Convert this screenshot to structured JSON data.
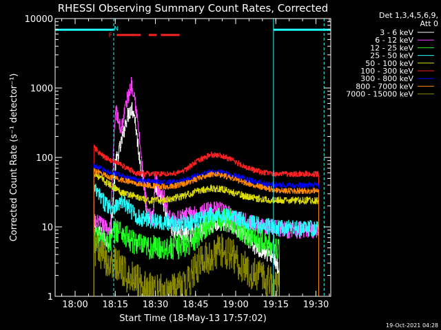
{
  "chart_data": {
    "type": "line",
    "title": "RHESSI Observing Summary Count Rates, Corrected",
    "xlabel": "Start Time (18-May-13 17:57:02)",
    "ylabel": "Corrected Count Rate (s⁻¹ detector⁻¹)",
    "x_unit": "minutes after 17:57:02 (18-May-13)",
    "xlim": [
      -4.5,
      98.5
    ],
    "ylim": [
      1,
      10000
    ],
    "yscale": "log",
    "x_ticks": [
      {
        "value": 2.97,
        "label": "18:00"
      },
      {
        "value": 17.97,
        "label": "18:15"
      },
      {
        "value": 32.97,
        "label": "18:30"
      },
      {
        "value": 47.97,
        "label": "18:45"
      },
      {
        "value": 62.97,
        "label": "19:00"
      },
      {
        "value": 77.97,
        "label": "19:15"
      },
      {
        "value": 92.97,
        "label": "19:30"
      }
    ],
    "y_ticks": [
      {
        "value": 1,
        "label": "1"
      },
      {
        "value": 10,
        "label": "10"
      },
      {
        "value": 100,
        "label": "100"
      },
      {
        "value": 1000,
        "label": "1000"
      },
      {
        "value": 10000,
        "label": "10000"
      }
    ],
    "legend_header": [
      "Det 1,3,4,5,6,9,",
      "Att 0"
    ],
    "legend_position": "right",
    "series": [
      {
        "name": "3 - 6 keV",
        "color": "#ffffff",
        "x": [
          10,
          12,
          14,
          16,
          18,
          20,
          22,
          24,
          25,
          27,
          28,
          29,
          30,
          31,
          32,
          33,
          34,
          35,
          36,
          38,
          40,
          43,
          46,
          50,
          54,
          58,
          61,
          64,
          67,
          70,
          73,
          76,
          77,
          78,
          79.3
        ],
        "y": [
          10,
          8,
          7,
          6,
          80,
          150,
          350,
          530,
          430,
          100,
          60,
          35,
          12,
          15,
          13,
          40,
          25,
          28,
          20,
          11,
          9,
          8,
          8,
          9,
          11,
          11,
          11,
          9,
          7,
          5,
          4.5,
          4,
          3.8,
          3,
          2
        ]
      },
      {
        "name": "6 - 12 keV",
        "color": "#ff44ff",
        "x": [
          10,
          12,
          14,
          16,
          18,
          20,
          22,
          24,
          25,
          27,
          28,
          29,
          30,
          31,
          32,
          33,
          34,
          35,
          36,
          38,
          40,
          43,
          46,
          50,
          54,
          58,
          61,
          64,
          67,
          70,
          73,
          76,
          78,
          82,
          86,
          90,
          94
        ],
        "y": [
          12,
          11,
          10,
          9,
          500,
          250,
          600,
          1150,
          900,
          180,
          70,
          30,
          15,
          14,
          12,
          60,
          30,
          35,
          28,
          14,
          12,
          14,
          15,
          16,
          18,
          17,
          15,
          13,
          12,
          11,
          10,
          10,
          9.5,
          9,
          9,
          9,
          9
        ]
      },
      {
        "name": "12 - 25 keV",
        "color": "#22ff22",
        "x": [
          10,
          12,
          14,
          16,
          18,
          20,
          22,
          24,
          26,
          28,
          30,
          32,
          34,
          36,
          40,
          44,
          48,
          50,
          54,
          58,
          62,
          64,
          67,
          70,
          73,
          76,
          79.3
        ],
        "y": [
          7,
          6.5,
          6,
          6,
          9,
          9,
          7,
          6,
          6,
          5,
          5,
          5,
          5,
          5,
          5,
          5.5,
          7,
          9,
          12,
          13,
          12,
          10,
          8,
          7,
          6,
          5.5,
          5
        ]
      },
      {
        "name": "25 - 50 keV",
        "color": "#22ffff",
        "x": [
          10,
          12,
          14,
          16,
          18,
          20,
          22,
          24,
          26,
          28,
          30,
          32,
          34,
          36,
          40,
          44,
          48,
          50,
          54,
          58,
          62,
          64,
          67,
          70,
          73,
          76,
          80,
          86,
          90,
          94
        ],
        "y": [
          35,
          28,
          22,
          20,
          20,
          22,
          21,
          17,
          14,
          13,
          13,
          12,
          12,
          12,
          11,
          11,
          12,
          13,
          15,
          15,
          14,
          13,
          12,
          11,
          10.5,
          10,
          9.5,
          9.5,
          9.5,
          9.5
        ]
      },
      {
        "name": "50 - 100 keV",
        "color": "#dddd00",
        "x": [
          10,
          12,
          14,
          16,
          18,
          20,
          22,
          24,
          26,
          28,
          30,
          34,
          38,
          42,
          46,
          50,
          54,
          58,
          62,
          66,
          70,
          74,
          78,
          82,
          86,
          90,
          94
        ],
        "y": [
          60,
          52,
          45,
          40,
          36,
          32,
          30,
          29,
          27,
          25,
          24,
          24,
          25,
          27,
          30,
          34,
          36,
          35,
          31,
          28,
          26,
          25,
          24,
          24,
          24,
          24,
          24
        ]
      },
      {
        "name": "100 - 300 keV",
        "color": "#ff2222",
        "x": [
          10,
          12,
          14,
          16,
          18,
          20,
          22,
          24,
          26,
          30,
          34,
          38,
          42,
          46,
          50,
          54,
          58,
          62,
          66,
          70,
          74,
          78,
          82,
          86,
          90,
          94
        ],
        "y": [
          140,
          115,
          100,
          92,
          85,
          80,
          70,
          65,
          58,
          58,
          58,
          58,
          60,
          75,
          95,
          110,
          105,
          90,
          75,
          65,
          60,
          58,
          58,
          58,
          58,
          58
        ]
      },
      {
        "name": "300 - 800 keV",
        "color": "#0000ff",
        "x": [
          10,
          12,
          14,
          16,
          18,
          20,
          22,
          24,
          26,
          30,
          34,
          38,
          42,
          46,
          50,
          54,
          58,
          62,
          66,
          70,
          74,
          78,
          82,
          86,
          90,
          94
        ],
        "y": [
          75,
          70,
          65,
          60,
          58,
          55,
          52,
          50,
          48,
          45,
          44,
          44,
          45,
          50,
          58,
          62,
          60,
          55,
          50,
          45,
          42,
          40,
          40,
          40,
          40,
          40
        ]
      },
      {
        "name": "800 - 7000 keV",
        "color": "#ff8800",
        "x": [
          10,
          12,
          14,
          16,
          18,
          20,
          22,
          24,
          26,
          30,
          34,
          38,
          42,
          46,
          50,
          54,
          58,
          62,
          66,
          70,
          74,
          78,
          82,
          86,
          90,
          94
        ],
        "y": [
          65,
          60,
          56,
          52,
          50,
          48,
          46,
          44,
          42,
          40,
          38,
          38,
          40,
          45,
          52,
          58,
          55,
          50,
          44,
          40,
          36,
          34,
          33,
          33,
          33,
          33
        ]
      },
      {
        "name": "7000 - 15000 keV",
        "color": "#888800",
        "x": [
          10,
          12,
          14,
          16,
          18,
          20,
          22,
          24,
          26,
          28,
          30,
          34,
          38,
          42,
          46,
          48,
          50,
          54,
          58,
          62,
          64,
          67,
          70,
          73,
          76,
          79.3
        ],
        "y": [
          5,
          4,
          3.5,
          3,
          3,
          2.5,
          2,
          2,
          1.8,
          1.5,
          1.3,
          1.2,
          1.2,
          1.3,
          1.8,
          2.5,
          3,
          4,
          4.5,
          4,
          3,
          2.5,
          2,
          1.8,
          1.5,
          1.2
        ]
      }
    ],
    "annotations": [
      {
        "kind": "marker",
        "text": "N",
        "x": 17.5,
        "y": 7200,
        "color": "#22ffff"
      },
      {
        "kind": "marker",
        "text": "F",
        "x": 15.5,
        "y": 5800,
        "color": "#ff2222"
      },
      {
        "kind": "bar",
        "color": "#ff2222",
        "x0": 18.5,
        "x1": 27.5,
        "y": 5800
      },
      {
        "kind": "bar",
        "color": "#ff2222",
        "x0": 30.5,
        "x1": 33.5,
        "y": 5800
      },
      {
        "kind": "bar",
        "color": "#ff2222",
        "x0": 35,
        "x1": 42,
        "y": 5800
      },
      {
        "kind": "bar",
        "color": "#22ffff",
        "x0": -4.5,
        "x1": 17.5,
        "y": 6900
      },
      {
        "kind": "bar",
        "color": "#22ffff",
        "x0": 77.2,
        "x1": 98.5,
        "y": 6900
      },
      {
        "kind": "vline",
        "color": "#22ffff",
        "x": -4.5,
        "style": "solid"
      },
      {
        "kind": "vline",
        "color": "#22ffff",
        "x": 17.4,
        "style": "dashed"
      },
      {
        "kind": "vline",
        "color": "#22ffff",
        "x": 77.1,
        "style": "solid"
      },
      {
        "kind": "vline",
        "color": "#22ffff",
        "x": 96.0,
        "style": "dashed"
      }
    ],
    "grid": false
  },
  "footer": {
    "timestamp": "19-Oct-2021 04:28"
  }
}
